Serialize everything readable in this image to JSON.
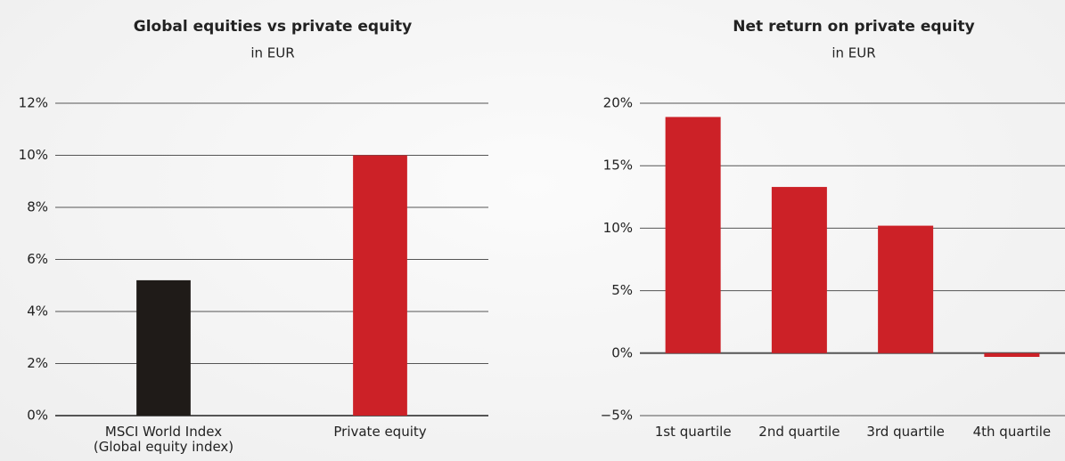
{
  "chart_data": [
    {
      "type": "bar",
      "title": "Global equities vs private equity",
      "subtitle": "in EUR",
      "categories": [
        "MSCI World Index\n(Global equity index)",
        "Private equity"
      ],
      "values": [
        5.2,
        10.0
      ],
      "colors": [
        "#1f1b18",
        "#cc2127"
      ],
      "ylim": [
        0,
        12
      ],
      "yticks": [
        {
          "value": 0,
          "label": "0%"
        },
        {
          "value": 2,
          "label": "2%"
        },
        {
          "value": 4,
          "label": "4%"
        },
        {
          "value": 6,
          "label": "6%"
        },
        {
          "value": 8,
          "label": "8%"
        },
        {
          "value": 10,
          "label": "10%"
        },
        {
          "value": 12,
          "label": "12%"
        }
      ],
      "grid": true
    },
    {
      "type": "bar",
      "title": "Net return on private equity",
      "subtitle": "in EUR",
      "categories": [
        "1st quartile",
        "2nd quartile",
        "3rd quartile",
        "4th quartile"
      ],
      "values": [
        18.9,
        13.3,
        10.2,
        -0.3
      ],
      "colors": [
        "#cc2127",
        "#cc2127",
        "#cc2127",
        "#cc2127"
      ],
      "ylim": [
        -5,
        20
      ],
      "yticks": [
        {
          "value": -5,
          "label": "−5%"
        },
        {
          "value": 0,
          "label": "0%"
        },
        {
          "value": 5,
          "label": "5%"
        },
        {
          "value": 10,
          "label": "10%"
        },
        {
          "value": 15,
          "label": "15%"
        },
        {
          "value": 20,
          "label": "20%"
        }
      ],
      "grid": true
    }
  ]
}
